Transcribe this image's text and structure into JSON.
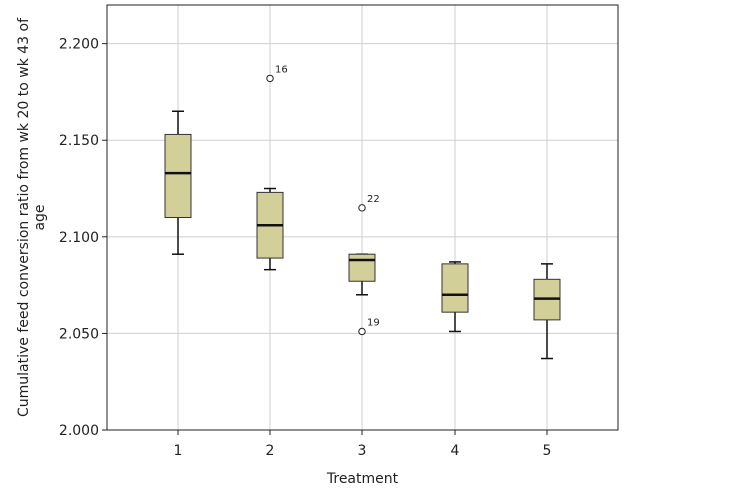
{
  "chart_data": {
    "type": "boxplot",
    "xlabel": "Treatment",
    "ylabel_lines": [
      "Cumulative feed conversion ratio from wk 20 to wk 43 of",
      "age"
    ],
    "categories": [
      "1",
      "2",
      "3",
      "4",
      "5"
    ],
    "ylim": [
      2.0,
      2.22
    ],
    "yticks": [
      2.0,
      2.05,
      2.1,
      2.15,
      2.2
    ],
    "ytick_labels": [
      "2.000",
      "2.050",
      "2.100",
      "2.150",
      "2.200"
    ],
    "grid": true,
    "box_color": "#d3cf99",
    "boxes": [
      {
        "category": "1",
        "whisker_low": 2.091,
        "q1": 2.11,
        "median": 2.133,
        "q3": 2.153,
        "whisker_high": 2.165,
        "outliers": []
      },
      {
        "category": "2",
        "whisker_low": 2.083,
        "q1": 2.089,
        "median": 2.106,
        "q3": 2.123,
        "whisker_high": 2.125,
        "outliers": [
          {
            "value": 2.182,
            "label": "16"
          }
        ]
      },
      {
        "category": "3",
        "whisker_low": 2.07,
        "q1": 2.077,
        "median": 2.088,
        "q3": 2.091,
        "whisker_high": 2.091,
        "outliers": [
          {
            "value": 2.115,
            "label": "22"
          },
          {
            "value": 2.051,
            "label": "19"
          }
        ]
      },
      {
        "category": "4",
        "whisker_low": 2.051,
        "q1": 2.061,
        "median": 2.07,
        "q3": 2.086,
        "whisker_high": 2.087,
        "outliers": []
      },
      {
        "category": "5",
        "whisker_low": 2.037,
        "q1": 2.057,
        "median": 2.068,
        "q3": 2.078,
        "whisker_high": 2.086,
        "outliers": []
      }
    ]
  }
}
